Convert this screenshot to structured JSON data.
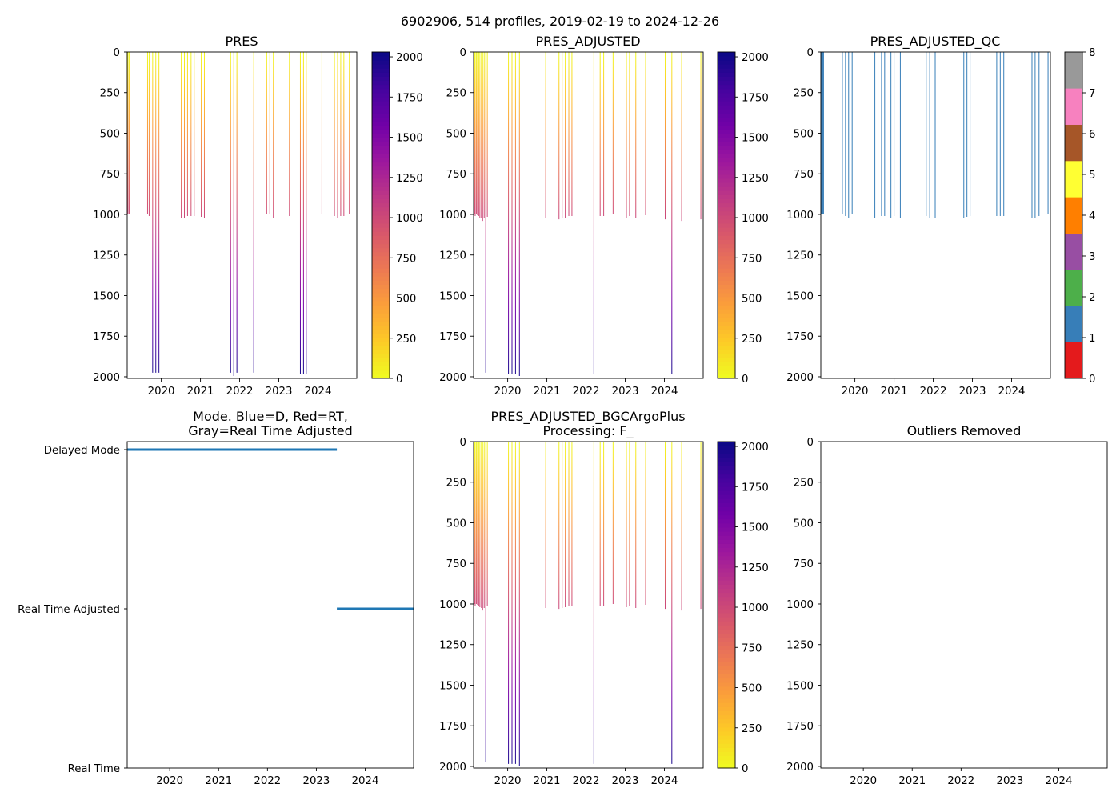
{
  "figure_title": "6902906, 514 profiles, 2019-02-19 to 2024-12-26",
  "colors": {
    "mode_line": "#1f77b4",
    "qc_line": "#377eb8",
    "plasma": [
      "#f0f921",
      "#fdca26",
      "#fb9f3a",
      "#ed7953",
      "#d8576b",
      "#bd3786",
      "#9c179e",
      "#7201a8",
      "#46039f",
      "#0d0887"
    ],
    "qc_categories": [
      "#e41a1c",
      "#377eb8",
      "#4daf4a",
      "#984ea3",
      "#ff7f00",
      "#ffff33",
      "#a65628",
      "#f781bf",
      "#999999"
    ]
  },
  "chart_data": [
    {
      "id": "pres",
      "type": "profile-strip",
      "title": "PRES",
      "xlim": [
        2019.13,
        2024.99
      ],
      "ylim": [
        2010,
        0
      ],
      "x_ticks": [
        2020,
        2021,
        2022,
        2023,
        2024
      ],
      "y_ticks": [
        0,
        250,
        500,
        750,
        1000,
        1250,
        1500,
        1750,
        2000
      ],
      "colorbar": {
        "cmap": "plasma_r",
        "vmin": 0,
        "vmax": 2030,
        "ticks": [
          0,
          250,
          500,
          750,
          1000,
          1250,
          1500,
          1750,
          2000
        ]
      },
      "profiles": [
        {
          "date": 2019.15,
          "max": 1000
        },
        {
          "date": 2019.18,
          "max": 1000
        },
        {
          "date": 2019.65,
          "max": 1000
        },
        {
          "date": 2019.69,
          "max": 1010
        },
        {
          "date": 2019.78,
          "max": 1975
        },
        {
          "date": 2019.86,
          "max": 1975
        },
        {
          "date": 2019.94,
          "max": 1975
        },
        {
          "date": 2020.51,
          "max": 1020
        },
        {
          "date": 2020.59,
          "max": 1025
        },
        {
          "date": 2020.67,
          "max": 1010
        },
        {
          "date": 2020.76,
          "max": 1010
        },
        {
          "date": 2020.84,
          "max": 1010
        },
        {
          "date": 2021.02,
          "max": 1015
        },
        {
          "date": 2021.1,
          "max": 1025
        },
        {
          "date": 2021.77,
          "max": 1975
        },
        {
          "date": 2021.85,
          "max": 1995
        },
        {
          "date": 2021.93,
          "max": 1975
        },
        {
          "date": 2022.36,
          "max": 1975
        },
        {
          "date": 2022.69,
          "max": 1000
        },
        {
          "date": 2022.77,
          "max": 1000
        },
        {
          "date": 2022.86,
          "max": 1020
        },
        {
          "date": 2023.27,
          "max": 1010
        },
        {
          "date": 2023.55,
          "max": 1985
        },
        {
          "date": 2023.63,
          "max": 1985
        },
        {
          "date": 2023.7,
          "max": 1985
        },
        {
          "date": 2024.1,
          "max": 1000
        },
        {
          "date": 2024.42,
          "max": 1010
        },
        {
          "date": 2024.5,
          "max": 1025
        },
        {
          "date": 2024.58,
          "max": 1010
        },
        {
          "date": 2024.66,
          "max": 1010
        },
        {
          "date": 2024.8,
          "max": 1000
        }
      ]
    },
    {
      "id": "pres_adj",
      "type": "profile-strip",
      "title": "PRES_ADJUSTED",
      "xlim": [
        2019.13,
        2024.99
      ],
      "ylim": [
        2010,
        0
      ],
      "x_ticks": [
        2020,
        2021,
        2022,
        2023,
        2024
      ],
      "y_ticks": [
        0,
        250,
        500,
        750,
        1000,
        1250,
        1500,
        1750,
        2000
      ],
      "colorbar": {
        "cmap": "plasma_r",
        "vmin": 0,
        "vmax": 2030,
        "ticks": [
          0,
          250,
          500,
          750,
          1000,
          1250,
          1500,
          1750,
          2000
        ]
      },
      "profiles": [
        {
          "date": 2019.15,
          "max": 1000
        },
        {
          "date": 2019.17,
          "max": 1010
        },
        {
          "date": 2019.2,
          "max": 1000
        },
        {
          "date": 2019.23,
          "max": 1005
        },
        {
          "date": 2019.26,
          "max": 1010
        },
        {
          "date": 2019.29,
          "max": 1020
        },
        {
          "date": 2019.33,
          "max": 1025
        },
        {
          "date": 2019.36,
          "max": 1040
        },
        {
          "date": 2019.4,
          "max": 1025
        },
        {
          "date": 2019.44,
          "max": 1975
        },
        {
          "date": 2019.48,
          "max": 1015
        },
        {
          "date": 2020.02,
          "max": 1985
        },
        {
          "date": 2020.11,
          "max": 1985
        },
        {
          "date": 2020.2,
          "max": 1985
        },
        {
          "date": 2020.3,
          "max": 1995
        },
        {
          "date": 2020.97,
          "max": 1025
        },
        {
          "date": 2021.31,
          "max": 1030
        },
        {
          "date": 2021.39,
          "max": 1025
        },
        {
          "date": 2021.47,
          "max": 1020
        },
        {
          "date": 2021.56,
          "max": 1010
        },
        {
          "date": 2021.64,
          "max": 1010
        },
        {
          "date": 2022.2,
          "max": 1985
        },
        {
          "date": 2022.36,
          "max": 1010
        },
        {
          "date": 2022.45,
          "max": 1010
        },
        {
          "date": 2022.69,
          "max": 1000
        },
        {
          "date": 2023.03,
          "max": 1020
        },
        {
          "date": 2023.11,
          "max": 1010
        },
        {
          "date": 2023.27,
          "max": 1025
        },
        {
          "date": 2023.52,
          "max": 1005
        },
        {
          "date": 2024.02,
          "max": 1030
        },
        {
          "date": 2024.19,
          "max": 1985
        },
        {
          "date": 2024.44,
          "max": 1040
        },
        {
          "date": 2024.93,
          "max": 1030
        }
      ]
    },
    {
      "id": "pres_adj_qc",
      "type": "profile-strip",
      "title": "PRES_ADJUSTED_QC",
      "xlim": [
        2019.13,
        2024.99
      ],
      "ylim": [
        2010,
        0
      ],
      "x_ticks": [
        2020,
        2021,
        2022,
        2023,
        2024
      ],
      "y_ticks": [
        0,
        250,
        500,
        750,
        1000,
        1250,
        1500,
        1750,
        2000
      ],
      "colorbar": {
        "cmap": "qc",
        "vmin": 0,
        "vmax": 8,
        "ticks": [
          0,
          1,
          2,
          3,
          4,
          5,
          6,
          7,
          8
        ]
      },
      "profiles": [
        {
          "date": 2019.14,
          "max": 1000
        },
        {
          "date": 2019.16,
          "max": 1000
        },
        {
          "date": 2019.18,
          "max": 1000
        },
        {
          "date": 2019.2,
          "max": 1000
        },
        {
          "date": 2019.68,
          "max": 1000
        },
        {
          "date": 2019.76,
          "max": 1010
        },
        {
          "date": 2019.84,
          "max": 1020
        },
        {
          "date": 2019.93,
          "max": 1000
        },
        {
          "date": 2020.51,
          "max": 1025
        },
        {
          "date": 2020.59,
          "max": 1020
        },
        {
          "date": 2020.68,
          "max": 1010
        },
        {
          "date": 2020.76,
          "max": 1010
        },
        {
          "date": 2020.92,
          "max": 1020
        },
        {
          "date": 2021.0,
          "max": 1010
        },
        {
          "date": 2021.16,
          "max": 1025
        },
        {
          "date": 2021.82,
          "max": 1010
        },
        {
          "date": 2021.91,
          "max": 1020
        },
        {
          "date": 2022.05,
          "max": 1025
        },
        {
          "date": 2022.78,
          "max": 1025
        },
        {
          "date": 2022.86,
          "max": 1015
        },
        {
          "date": 2022.94,
          "max": 1010
        },
        {
          "date": 2023.62,
          "max": 1010
        },
        {
          "date": 2023.71,
          "max": 1010
        },
        {
          "date": 2023.8,
          "max": 1010
        },
        {
          "date": 2024.52,
          "max": 1025
        },
        {
          "date": 2024.6,
          "max": 1020
        },
        {
          "date": 2024.7,
          "max": 1010
        },
        {
          "date": 2024.93,
          "max": 1000
        }
      ]
    },
    {
      "id": "mode",
      "type": "line",
      "title": "Mode. Blue=D, Red=RT,",
      "title_line2": "Gray=Real Time Adjusted",
      "xlim": [
        2019.13,
        2024.99
      ],
      "x_ticks": [
        2020,
        2021,
        2022,
        2023,
        2024
      ],
      "categories": [
        "Delayed Mode",
        "Real Time Adjusted",
        "Real Time"
      ],
      "segments": [
        {
          "x": [
            2019.13,
            2023.42
          ],
          "level": "Delayed Mode"
        },
        {
          "x": [
            2023.42,
            2024.99
          ],
          "level": "Real Time Adjusted"
        }
      ]
    },
    {
      "id": "bgc",
      "type": "profile-strip",
      "title": "PRES_ADJUSTED_BGCArgoPlus",
      "title_line2": "Processing: F_",
      "xlim": [
        2019.13,
        2024.99
      ],
      "ylim": [
        2010,
        0
      ],
      "x_ticks": [
        2020,
        2021,
        2022,
        2023,
        2024
      ],
      "y_ticks": [
        0,
        250,
        500,
        750,
        1000,
        1250,
        1500,
        1750,
        2000
      ],
      "colorbar": {
        "cmap": "plasma_r",
        "vmin": 0,
        "vmax": 2030,
        "ticks": [
          0,
          250,
          500,
          750,
          1000,
          1250,
          1500,
          1750,
          2000
        ]
      },
      "profiles": [
        {
          "date": 2019.15,
          "max": 1000
        },
        {
          "date": 2019.17,
          "max": 1010
        },
        {
          "date": 2019.2,
          "max": 1000
        },
        {
          "date": 2019.23,
          "max": 1005
        },
        {
          "date": 2019.26,
          "max": 1010
        },
        {
          "date": 2019.29,
          "max": 1020
        },
        {
          "date": 2019.33,
          "max": 1025
        },
        {
          "date": 2019.36,
          "max": 1040
        },
        {
          "date": 2019.4,
          "max": 1025
        },
        {
          "date": 2019.44,
          "max": 1975
        },
        {
          "date": 2019.48,
          "max": 1015
        },
        {
          "date": 2020.02,
          "max": 1985
        },
        {
          "date": 2020.11,
          "max": 1985
        },
        {
          "date": 2020.2,
          "max": 1985
        },
        {
          "date": 2020.3,
          "max": 1995
        },
        {
          "date": 2020.97,
          "max": 1025
        },
        {
          "date": 2021.31,
          "max": 1030
        },
        {
          "date": 2021.39,
          "max": 1025
        },
        {
          "date": 2021.47,
          "max": 1020
        },
        {
          "date": 2021.56,
          "max": 1010
        },
        {
          "date": 2021.64,
          "max": 1010
        },
        {
          "date": 2022.2,
          "max": 1985
        },
        {
          "date": 2022.36,
          "max": 1010
        },
        {
          "date": 2022.45,
          "max": 1010
        },
        {
          "date": 2022.69,
          "max": 1000
        },
        {
          "date": 2023.03,
          "max": 1020
        },
        {
          "date": 2023.11,
          "max": 1010
        },
        {
          "date": 2023.27,
          "max": 1025
        },
        {
          "date": 2023.52,
          "max": 1005
        },
        {
          "date": 2024.02,
          "max": 1030
        },
        {
          "date": 2024.19,
          "max": 1985
        },
        {
          "date": 2024.44,
          "max": 1040
        },
        {
          "date": 2024.93,
          "max": 1030
        }
      ]
    },
    {
      "id": "outliers",
      "type": "scatter",
      "title": "Outliers Removed",
      "xlim": [
        2019.13,
        2024.99
      ],
      "ylim": [
        2010,
        0
      ],
      "x_ticks": [
        2020,
        2021,
        2022,
        2023,
        2024
      ],
      "y_ticks": [
        0,
        250,
        500,
        750,
        1000,
        1250,
        1500,
        1750,
        2000
      ],
      "points": []
    }
  ]
}
